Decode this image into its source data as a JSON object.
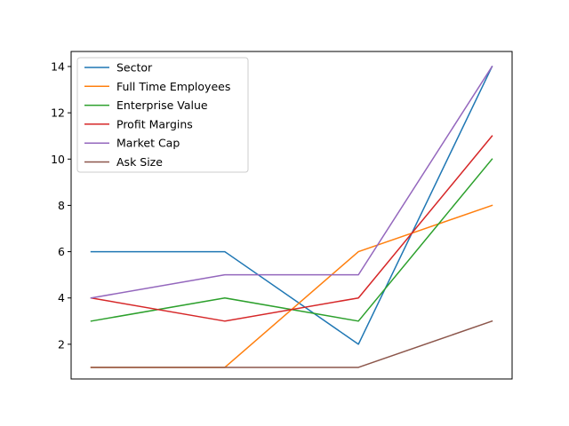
{
  "chart_data": {
    "type": "line",
    "title": "",
    "xlabel": "",
    "ylabel": "",
    "x": [
      0,
      1,
      2,
      3
    ],
    "xticks_visible": false,
    "ylim": [
      0.5,
      14.65
    ],
    "yticks": [
      2,
      4,
      6,
      8,
      10,
      12,
      14
    ],
    "ytick_labels": [
      "2",
      "4",
      "6",
      "8",
      "10",
      "12",
      "14"
    ],
    "grid": false,
    "legend_position": "top-left",
    "series": [
      {
        "name": "Sector",
        "values": [
          6,
          6,
          2,
          14
        ],
        "color": "#1f77b4"
      },
      {
        "name": "Full Time Employees",
        "values": [
          1,
          1,
          6,
          8
        ],
        "color": "#ff7f0e"
      },
      {
        "name": "Enterprise Value",
        "values": [
          3,
          4,
          3,
          10
        ],
        "color": "#2ca02c"
      },
      {
        "name": "Profit Margins",
        "values": [
          4,
          3,
          4,
          11
        ],
        "color": "#d62728"
      },
      {
        "name": "Market Cap",
        "values": [
          4,
          5,
          5,
          14
        ],
        "color": "#9467bd"
      },
      {
        "name": "Ask Size",
        "values": [
          1,
          1,
          1,
          3
        ],
        "color": "#8c564b"
      }
    ]
  }
}
